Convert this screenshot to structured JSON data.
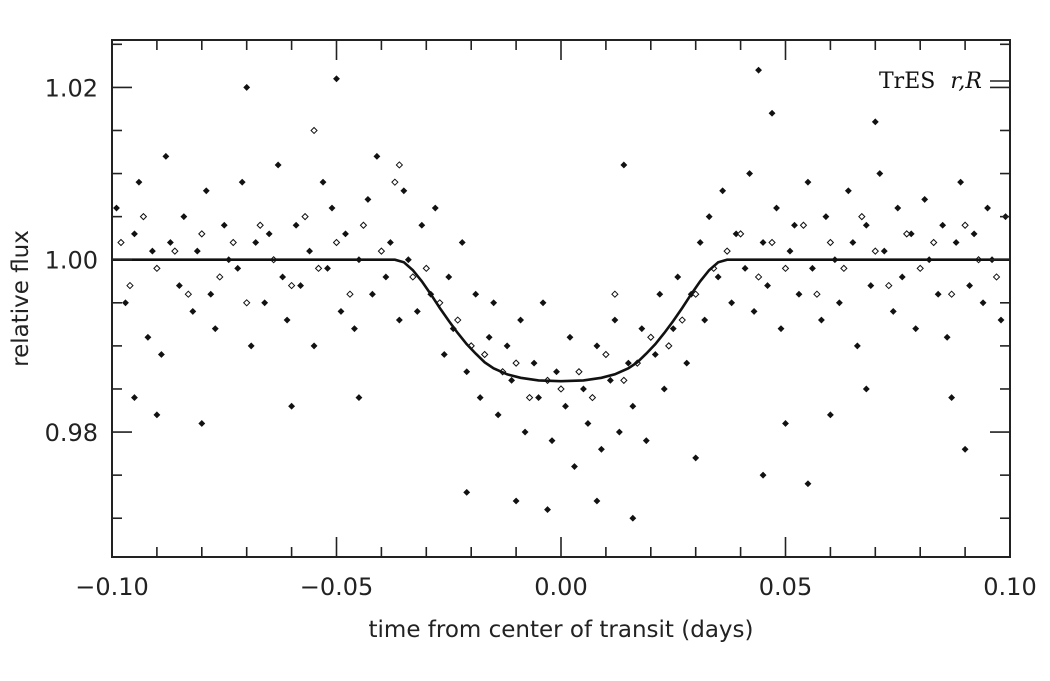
{
  "chart_data": {
    "type": "scatter",
    "annotation": {
      "prefix": "TrES",
      "filters": "r,R"
    },
    "xlabel": "time from center of transit (days)",
    "ylabel": "relative flux",
    "xlim": [
      -0.1,
      0.1
    ],
    "ylim": [
      0.9655,
      1.0255
    ],
    "x_ticks": [
      -0.1,
      -0.05,
      0.0,
      0.05,
      0.1
    ],
    "x_tick_labels": [
      "−0.10",
      "−0.05",
      "0.00",
      "0.05",
      "0.10"
    ],
    "y_ticks": [
      0.98,
      1.0,
      1.02
    ],
    "y_tick_labels": [
      "0.98",
      "1.00",
      "1.02"
    ],
    "grid": false,
    "series": [
      {
        "marker": "filled-diamond",
        "values": [
          [
            -0.099,
            1.006
          ],
          [
            -0.097,
            0.995
          ],
          [
            -0.095,
            1.003
          ],
          [
            -0.094,
            1.009
          ],
          [
            -0.092,
            0.991
          ],
          [
            -0.091,
            1.001
          ],
          [
            -0.089,
            0.989
          ],
          [
            -0.088,
            1.012
          ],
          [
            -0.087,
            1.002
          ],
          [
            -0.085,
            0.997
          ],
          [
            -0.084,
            1.005
          ],
          [
            -0.082,
            0.994
          ],
          [
            -0.081,
            1.001
          ],
          [
            -0.079,
            1.008
          ],
          [
            -0.078,
            0.996
          ],
          [
            -0.077,
            0.992
          ],
          [
            -0.075,
            1.004
          ],
          [
            -0.074,
            1.0
          ],
          [
            -0.072,
            0.999
          ],
          [
            -0.071,
            1.009
          ],
          [
            -0.069,
            0.99
          ],
          [
            -0.068,
            1.002
          ],
          [
            -0.066,
            0.995
          ],
          [
            -0.065,
            1.003
          ],
          [
            -0.063,
            1.011
          ],
          [
            -0.062,
            0.998
          ],
          [
            -0.061,
            0.993
          ],
          [
            -0.059,
            1.004
          ],
          [
            -0.058,
            0.997
          ],
          [
            -0.056,
            1.001
          ],
          [
            -0.055,
            0.99
          ],
          [
            -0.053,
            1.009
          ],
          [
            -0.052,
            0.999
          ],
          [
            -0.051,
            1.006
          ],
          [
            -0.049,
            0.994
          ],
          [
            -0.048,
            1.003
          ],
          [
            -0.046,
            0.992
          ],
          [
            -0.045,
            1.0
          ],
          [
            -0.043,
            1.007
          ],
          [
            -0.042,
            0.996
          ],
          [
            -0.041,
            1.012
          ],
          [
            -0.039,
            0.998
          ],
          [
            -0.038,
            1.002
          ],
          [
            -0.036,
            0.993
          ],
          [
            -0.035,
            1.008
          ],
          [
            -0.034,
            1.0
          ],
          [
            -0.032,
            0.994
          ],
          [
            -0.031,
            1.004
          ],
          [
            -0.029,
            0.996
          ],
          [
            -0.028,
            1.006
          ],
          [
            -0.026,
            0.989
          ],
          [
            -0.025,
            0.998
          ],
          [
            -0.024,
            0.992
          ],
          [
            -0.022,
            1.002
          ],
          [
            -0.021,
            0.987
          ],
          [
            -0.019,
            0.996
          ],
          [
            -0.018,
            0.984
          ],
          [
            -0.016,
            0.991
          ],
          [
            -0.015,
            0.995
          ],
          [
            -0.014,
            0.982
          ],
          [
            -0.012,
            0.99
          ],
          [
            -0.011,
            0.986
          ],
          [
            -0.009,
            0.993
          ],
          [
            -0.008,
            0.98
          ],
          [
            -0.006,
            0.988
          ],
          [
            -0.005,
            0.984
          ],
          [
            -0.004,
            0.995
          ],
          [
            -0.002,
            0.979
          ],
          [
            -0.001,
            0.987
          ],
          [
            0.001,
            0.983
          ],
          [
            0.002,
            0.991
          ],
          [
            0.003,
            0.976
          ],
          [
            0.005,
            0.985
          ],
          [
            0.006,
            0.981
          ],
          [
            0.008,
            0.99
          ],
          [
            0.009,
            0.978
          ],
          [
            0.011,
            0.986
          ],
          [
            0.012,
            0.993
          ],
          [
            0.013,
            0.98
          ],
          [
            0.015,
            0.988
          ],
          [
            0.016,
            0.983
          ],
          [
            0.018,
            0.992
          ],
          [
            0.019,
            0.979
          ],
          [
            0.021,
            0.989
          ],
          [
            0.022,
            0.996
          ],
          [
            0.023,
            0.985
          ],
          [
            0.025,
            0.992
          ],
          [
            0.026,
            0.998
          ],
          [
            0.028,
            0.988
          ],
          [
            0.029,
            0.996
          ],
          [
            0.031,
            1.002
          ],
          [
            0.032,
            0.993
          ],
          [
            0.033,
            1.005
          ],
          [
            0.035,
            0.998
          ],
          [
            0.036,
            1.008
          ],
          [
            0.038,
            0.995
          ],
          [
            0.039,
            1.003
          ],
          [
            0.041,
            0.999
          ],
          [
            0.042,
            1.01
          ],
          [
            0.043,
            0.994
          ],
          [
            0.045,
            1.002
          ],
          [
            0.046,
            0.997
          ],
          [
            0.048,
            1.006
          ],
          [
            0.049,
            0.992
          ],
          [
            0.051,
            1.001
          ],
          [
            0.052,
            1.004
          ],
          [
            0.053,
            0.996
          ],
          [
            0.055,
            1.009
          ],
          [
            0.056,
            0.999
          ],
          [
            0.058,
            0.993
          ],
          [
            0.059,
            1.005
          ],
          [
            0.061,
            1.0
          ],
          [
            0.062,
            0.995
          ],
          [
            0.064,
            1.008
          ],
          [
            0.065,
            1.002
          ],
          [
            0.066,
            0.99
          ],
          [
            0.068,
            1.004
          ],
          [
            0.069,
            0.997
          ],
          [
            0.071,
            1.01
          ],
          [
            0.072,
            1.001
          ],
          [
            0.074,
            0.994
          ],
          [
            0.075,
            1.006
          ],
          [
            0.076,
            0.998
          ],
          [
            0.078,
            1.003
          ],
          [
            0.079,
            0.992
          ],
          [
            0.081,
            1.007
          ],
          [
            0.082,
            1.0
          ],
          [
            0.084,
            0.996
          ],
          [
            0.085,
            1.004
          ],
          [
            0.086,
            0.991
          ],
          [
            0.088,
            1.002
          ],
          [
            0.089,
            1.009
          ],
          [
            0.091,
            0.997
          ],
          [
            0.092,
            1.003
          ],
          [
            0.094,
            0.995
          ],
          [
            0.095,
            1.006
          ],
          [
            0.096,
            1.0
          ],
          [
            0.098,
            0.993
          ],
          [
            0.099,
            1.005
          ],
          [
            -0.05,
            1.021
          ],
          [
            -0.07,
            1.02
          ],
          [
            0.044,
            1.022
          ],
          [
            0.047,
            1.017
          ],
          [
            0.07,
            1.016
          ],
          [
            0.014,
            1.011
          ],
          [
            -0.09,
            0.982
          ],
          [
            -0.095,
            0.984
          ],
          [
            -0.08,
            0.981
          ],
          [
            -0.06,
            0.983
          ],
          [
            -0.045,
            0.984
          ],
          [
            -0.01,
            0.972
          ],
          [
            -0.003,
            0.971
          ],
          [
            0.008,
            0.972
          ],
          [
            0.016,
            0.97
          ],
          [
            -0.021,
            0.973
          ],
          [
            0.03,
            0.977
          ],
          [
            0.045,
            0.975
          ],
          [
            0.055,
            0.974
          ],
          [
            0.06,
            0.982
          ],
          [
            0.09,
            0.978
          ],
          [
            0.087,
            0.984
          ],
          [
            0.05,
            0.981
          ],
          [
            0.068,
            0.985
          ]
        ]
      },
      {
        "marker": "open-diamond",
        "values": [
          [
            -0.098,
            1.002
          ],
          [
            -0.096,
            0.997
          ],
          [
            -0.093,
            1.005
          ],
          [
            -0.09,
            0.999
          ],
          [
            -0.086,
            1.001
          ],
          [
            -0.083,
            0.996
          ],
          [
            -0.08,
            1.003
          ],
          [
            -0.076,
            0.998
          ],
          [
            -0.073,
            1.002
          ],
          [
            -0.07,
            0.995
          ],
          [
            -0.067,
            1.004
          ],
          [
            -0.064,
            1.0
          ],
          [
            -0.06,
            0.997
          ],
          [
            -0.057,
            1.005
          ],
          [
            -0.054,
            0.999
          ],
          [
            -0.05,
            1.002
          ],
          [
            -0.047,
            0.996
          ],
          [
            -0.044,
            1.004
          ],
          [
            -0.04,
            1.001
          ],
          [
            -0.037,
            1.009
          ],
          [
            -0.033,
            0.998
          ],
          [
            -0.03,
            0.999
          ],
          [
            -0.027,
            0.995
          ],
          [
            -0.023,
            0.993
          ],
          [
            -0.02,
            0.99
          ],
          [
            -0.017,
            0.989
          ],
          [
            -0.013,
            0.987
          ],
          [
            -0.01,
            0.988
          ],
          [
            -0.007,
            0.984
          ],
          [
            -0.003,
            0.986
          ],
          [
            0.0,
            0.985
          ],
          [
            0.004,
            0.987
          ],
          [
            0.007,
            0.984
          ],
          [
            0.01,
            0.989
          ],
          [
            0.014,
            0.986
          ],
          [
            0.017,
            0.988
          ],
          [
            0.02,
            0.991
          ],
          [
            0.024,
            0.99
          ],
          [
            0.027,
            0.993
          ],
          [
            0.03,
            0.996
          ],
          [
            0.034,
            0.999
          ],
          [
            0.037,
            1.001
          ],
          [
            0.04,
            1.003
          ],
          [
            0.044,
            0.998
          ],
          [
            0.047,
            1.002
          ],
          [
            0.05,
            0.999
          ],
          [
            0.054,
            1.004
          ],
          [
            0.057,
            0.996
          ],
          [
            0.06,
            1.002
          ],
          [
            0.063,
            0.999
          ],
          [
            0.067,
            1.005
          ],
          [
            0.07,
            1.001
          ],
          [
            0.073,
            0.997
          ],
          [
            0.077,
            1.003
          ],
          [
            0.08,
            0.999
          ],
          [
            0.083,
            1.002
          ],
          [
            0.087,
            0.996
          ],
          [
            0.09,
            1.004
          ],
          [
            0.093,
            1.0
          ],
          [
            0.097,
            0.998
          ],
          [
            -0.055,
            1.015
          ],
          [
            -0.036,
            1.011
          ],
          [
            0.012,
            0.996
          ]
        ]
      },
      {
        "type": "line",
        "marker": "none",
        "values": [
          [
            -0.1,
            1.0
          ],
          [
            -0.037,
            1.0
          ],
          [
            -0.035,
            0.9997
          ],
          [
            -0.033,
            0.9988
          ],
          [
            -0.031,
            0.9975
          ],
          [
            -0.029,
            0.996
          ],
          [
            -0.027,
            0.9944
          ],
          [
            -0.025,
            0.9929
          ],
          [
            -0.023,
            0.9915
          ],
          [
            -0.021,
            0.9902
          ],
          [
            -0.019,
            0.9891
          ],
          [
            -0.017,
            0.9881
          ],
          [
            -0.015,
            0.9874
          ],
          [
            -0.012,
            0.9867
          ],
          [
            -0.009,
            0.9863
          ],
          [
            -0.005,
            0.986
          ],
          [
            0.0,
            0.9859
          ],
          [
            0.005,
            0.986
          ],
          [
            0.009,
            0.9863
          ],
          [
            0.012,
            0.9867
          ],
          [
            0.015,
            0.9874
          ],
          [
            0.017,
            0.9881
          ],
          [
            0.019,
            0.9891
          ],
          [
            0.021,
            0.9902
          ],
          [
            0.023,
            0.9915
          ],
          [
            0.025,
            0.9929
          ],
          [
            0.027,
            0.9944
          ],
          [
            0.029,
            0.996
          ],
          [
            0.031,
            0.9975
          ],
          [
            0.033,
            0.9988
          ],
          [
            0.035,
            0.9997
          ],
          [
            0.037,
            1.0
          ],
          [
            0.1,
            1.0
          ]
        ]
      }
    ],
    "colors": {
      "points": "#111111",
      "line": "#111111",
      "frame": "#222222"
    }
  }
}
